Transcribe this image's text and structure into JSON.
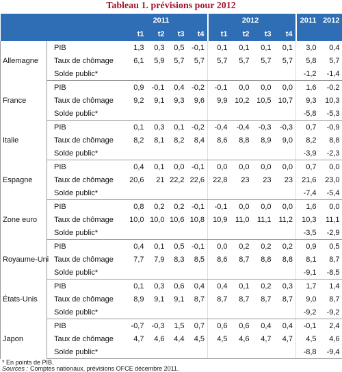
{
  "title": "Tableau 1. prévisions pour 2012",
  "header": {
    "years": [
      "2011",
      "2012",
      "2011",
      "2012"
    ],
    "quarters": [
      "t1",
      "t2",
      "t3",
      "t4",
      "t1",
      "t2",
      "t3",
      "t4"
    ]
  },
  "countries": [
    {
      "name": "Allemagne",
      "rows": [
        {
          "label": "PIB",
          "values": [
            "1,3",
            "0,3",
            "0,5",
            "-0,1",
            "0,1",
            "0,1",
            "0,1",
            "0,1",
            "3,0",
            "0,4"
          ]
        },
        {
          "label": "Taux de chômage",
          "values": [
            "6,1",
            "5,9",
            "5,7",
            "5,7",
            "5,7",
            "5,7",
            "5,7",
            "5,7",
            "5,8",
            "5,7"
          ]
        },
        {
          "label": "Solde public*",
          "values": [
            null,
            null,
            null,
            null,
            null,
            null,
            null,
            null,
            "-1,2",
            "-1,4"
          ]
        }
      ]
    },
    {
      "name": "France",
      "rows": [
        {
          "label": "PIB",
          "values": [
            "0,9",
            "-0,1",
            "0,4",
            "-0,2",
            "-0,1",
            "0,0",
            "0,0",
            "0,0",
            "1,6",
            "-0,2"
          ]
        },
        {
          "label": "Taux de chômage",
          "values": [
            "9,2",
            "9,1",
            "9,3",
            "9,6",
            "9,9",
            "10,2",
            "10,5",
            "10,7",
            "9,3",
            "10,3"
          ]
        },
        {
          "label": "Solde public*",
          "values": [
            null,
            null,
            null,
            null,
            null,
            null,
            null,
            null,
            "-5,8",
            "-5,3"
          ]
        }
      ]
    },
    {
      "name": "Italie",
      "rows": [
        {
          "label": "PIB",
          "values": [
            "0,1",
            "0,3",
            "0,1",
            "-0,2",
            "-0,4",
            "-0,4",
            "-0,3",
            "-0,3",
            "0,7",
            "-0,9"
          ]
        },
        {
          "label": "Taux de chômage",
          "values": [
            "8,2",
            "8,1",
            "8,2",
            "8,4",
            "8,6",
            "8,8",
            "8,9",
            "9,0",
            "8,2",
            "8,8"
          ]
        },
        {
          "label": "Solde public*",
          "values": [
            null,
            null,
            null,
            null,
            null,
            null,
            null,
            null,
            "-3,9",
            "-2,3"
          ]
        }
      ]
    },
    {
      "name": "Espagne",
      "rows": [
        {
          "label": "PIB",
          "values": [
            "0,4",
            "0,1",
            "0,0",
            "-0,1",
            "0,0",
            "0,0",
            "0,0",
            "0,0",
            "0,7",
            "0,0"
          ]
        },
        {
          "label": "Taux de chômage",
          "values": [
            "20,6",
            "21",
            "22,2",
            "22,6",
            "22,8",
            "23",
            "23",
            "23",
            "21,6",
            "23,0"
          ]
        },
        {
          "label": "Solde public*",
          "values": [
            null,
            null,
            null,
            null,
            null,
            null,
            null,
            null,
            "-7,4",
            "-5,4"
          ]
        }
      ]
    },
    {
      "name": "Zone euro",
      "rows": [
        {
          "label": "PIB",
          "values": [
            "0,8",
            "0,2",
            "0,2",
            "-0,1",
            "-0,1",
            "0,0",
            "0,0",
            "0,0",
            "1,6",
            "0,0"
          ]
        },
        {
          "label": "Taux de chômage",
          "values": [
            "10,0",
            "10,0",
            "10,6",
            "10,8",
            "10,9",
            "11,0",
            "11,1",
            "11,2",
            "10,3",
            "11,1"
          ]
        },
        {
          "label": "Solde public*",
          "values": [
            null,
            null,
            null,
            null,
            null,
            null,
            null,
            null,
            "-3,5",
            "-2,9"
          ]
        }
      ]
    },
    {
      "name": "Royaume-Uni",
      "rows": [
        {
          "label": "PIB",
          "values": [
            "0,4",
            "0,1",
            "0,5",
            "-0,1",
            "0,0",
            "0,2",
            "0,2",
            "0,2",
            "0,9",
            "0,5"
          ]
        },
        {
          "label": "Taux de chômage",
          "values": [
            "7,7",
            "7,9",
            "8,3",
            "8,5",
            "8,6",
            "8,7",
            "8,8",
            "8,8",
            "8,1",
            "8,7"
          ]
        },
        {
          "label": "Solde public*",
          "values": [
            null,
            null,
            null,
            null,
            null,
            null,
            null,
            null,
            "-9,1",
            "-8,5"
          ]
        }
      ]
    },
    {
      "name": "États-Unis",
      "rows": [
        {
          "label": "PIB",
          "values": [
            "0,1",
            "0,3",
            "0,6",
            "0,4",
            "0,4",
            "0,1",
            "0,2",
            "0,3",
            "1,7",
            "1,4"
          ]
        },
        {
          "label": "Taux de chômage",
          "values": [
            "8,9",
            "9,1",
            "9,1",
            "8,7",
            "8,7",
            "8,7",
            "8,7",
            "8,7",
            "9,0",
            "8,7"
          ]
        },
        {
          "label": "Solde public*",
          "values": [
            null,
            null,
            null,
            null,
            null,
            null,
            null,
            null,
            "-9,2",
            "-9,2"
          ]
        }
      ]
    },
    {
      "name": "Japon",
      "rows": [
        {
          "label": "PIB",
          "values": [
            "-0,7",
            "-0,3",
            "1,5",
            "0,7",
            "0,6",
            "0,6",
            "0,4",
            "0,4",
            "-0,1",
            "2,4"
          ]
        },
        {
          "label": "Taux de chômage",
          "values": [
            "4,7",
            "4,6",
            "4,4",
            "4,5",
            "4,5",
            "4,6",
            "4,7",
            "4,7",
            "4,5",
            "4,6"
          ]
        },
        {
          "label": "Solde public*",
          "values": [
            null,
            null,
            null,
            null,
            null,
            null,
            null,
            null,
            "-8,8",
            "-9,4"
          ]
        }
      ]
    }
  ],
  "notes": [
    "* En points de PIB."
  ],
  "sources": {
    "label": "Sources :",
    "text": "Comptes nationaux, prévisions OFCE décembre 2011."
  }
}
